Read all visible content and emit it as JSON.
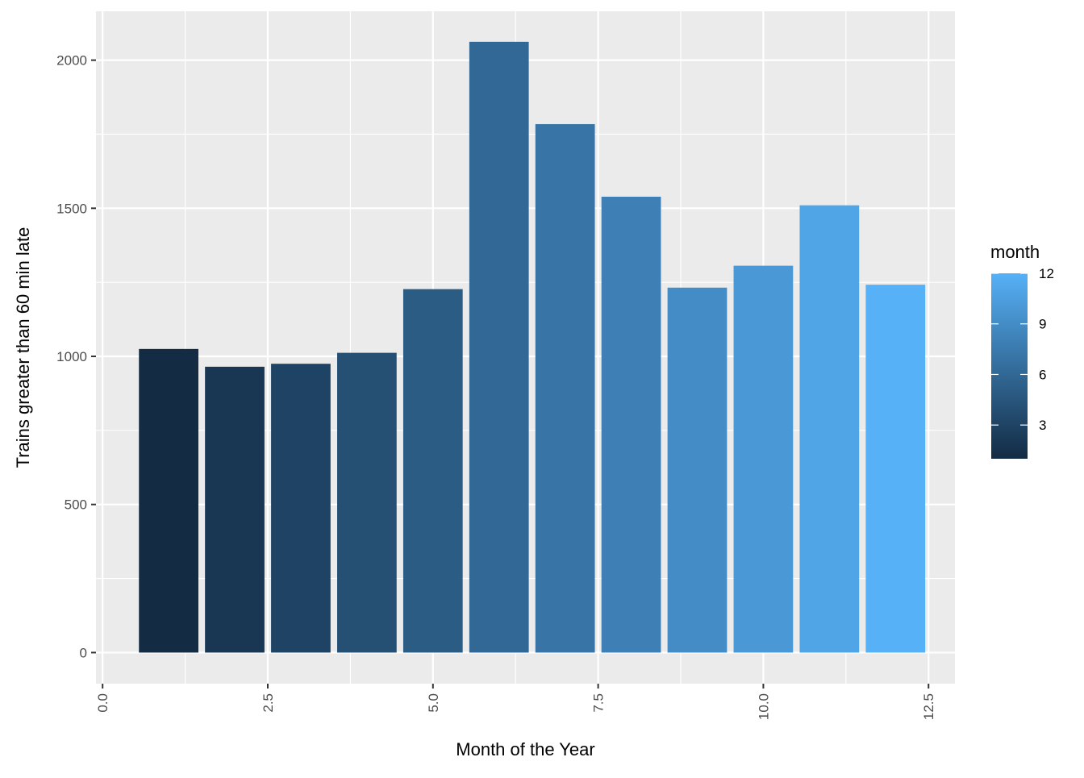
{
  "chart_data": {
    "type": "bar",
    "x": [
      1,
      2,
      3,
      4,
      5,
      6,
      7,
      8,
      9,
      10,
      11,
      12
    ],
    "values": [
      1025,
      965,
      975,
      1012,
      1227,
      2062,
      1784,
      1539,
      1232,
      1306,
      1510,
      1242
    ],
    "xlabel": "Month of the Year",
    "ylabel": "Trains greater than 60 min late",
    "xlim": [
      -0.1,
      12.9
    ],
    "ylim": [
      -105,
      2165
    ],
    "x_ticks": [
      0,
      2.5,
      5,
      7.5,
      10,
      12.5
    ],
    "x_tick_labels": [
      "0.0",
      "2.5",
      "5.0",
      "7.5",
      "10.0",
      "12.5"
    ],
    "y_ticks": [
      0,
      500,
      1000,
      1500,
      2000
    ],
    "y_tick_labels": [
      "0",
      "500",
      "1000",
      "1500",
      "2000"
    ],
    "grid": true,
    "bar_width": 0.9,
    "color_low": "#132B43",
    "color_high": "#56B1F7",
    "panel_background": "#EBEBEB",
    "legend": {
      "title": "month",
      "position": "right",
      "range": [
        1,
        12
      ],
      "ticks": [
        3,
        6,
        9,
        12
      ],
      "tick_labels": [
        "3",
        "6",
        "9",
        "12"
      ]
    }
  }
}
